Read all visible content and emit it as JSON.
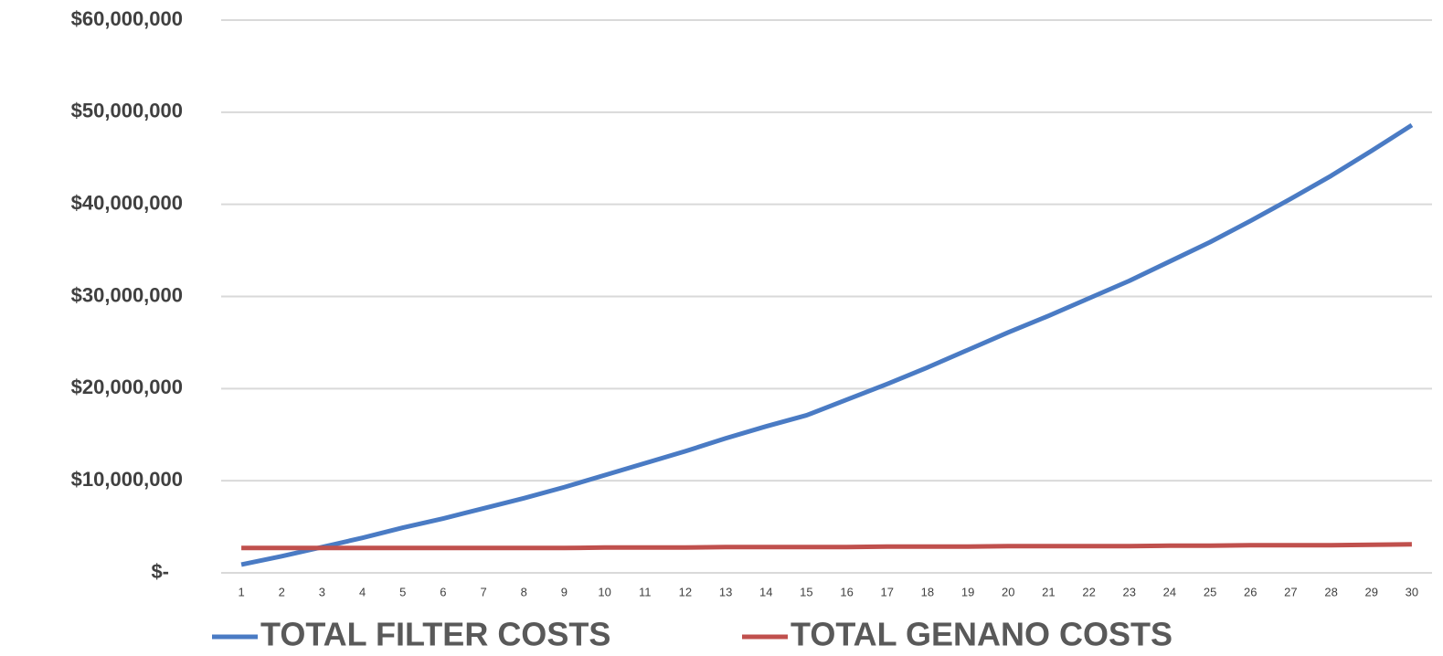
{
  "chart_data": {
    "type": "line",
    "categories": [
      "1",
      "2",
      "3",
      "4",
      "5",
      "6",
      "7",
      "8",
      "9",
      "10",
      "11",
      "12",
      "13",
      "14",
      "15",
      "16",
      "17",
      "18",
      "19",
      "20",
      "21",
      "22",
      "23",
      "24",
      "25",
      "26",
      "27",
      "28",
      "29",
      "30"
    ],
    "series": [
      {
        "name": "TOTAL FILTER COSTS",
        "color": "#4a7bc4",
        "values": [
          900000,
          1800000,
          2800000,
          3800000,
          4900000,
          5900000,
          7000000,
          8100000,
          9300000,
          10600000,
          11900000,
          13200000,
          14600000,
          15900000,
          17100000,
          18800000,
          20500000,
          22300000,
          24200000,
          26100000,
          27900000,
          29800000,
          31700000,
          33800000,
          35900000,
          38200000,
          40600000,
          43100000,
          45800000,
          48600000
        ]
      },
      {
        "name": "TOTAL GENANO COSTS",
        "color": "#c0504d",
        "values": [
          2700000,
          2700000,
          2700000,
          2700000,
          2700000,
          2700000,
          2700000,
          2700000,
          2700000,
          2750000,
          2750000,
          2750000,
          2800000,
          2800000,
          2800000,
          2800000,
          2850000,
          2850000,
          2850000,
          2900000,
          2900000,
          2900000,
          2900000,
          2950000,
          2950000,
          3000000,
          3000000,
          3000000,
          3050000,
          3100000
        ]
      }
    ],
    "ylim": [
      0,
      60000000
    ],
    "yticks": [
      {
        "value": 0,
        "label": "$-"
      },
      {
        "value": 10000000,
        "label": "$10,000,000"
      },
      {
        "value": 20000000,
        "label": "$20,000,000"
      },
      {
        "value": 30000000,
        "label": "$30,000,000"
      },
      {
        "value": 40000000,
        "label": "$40,000,000"
      },
      {
        "value": 50000000,
        "label": "$50,000,000"
      },
      {
        "value": 60000000,
        "label": "$60,000,000"
      }
    ],
    "grid": true,
    "legend": "bottom"
  }
}
